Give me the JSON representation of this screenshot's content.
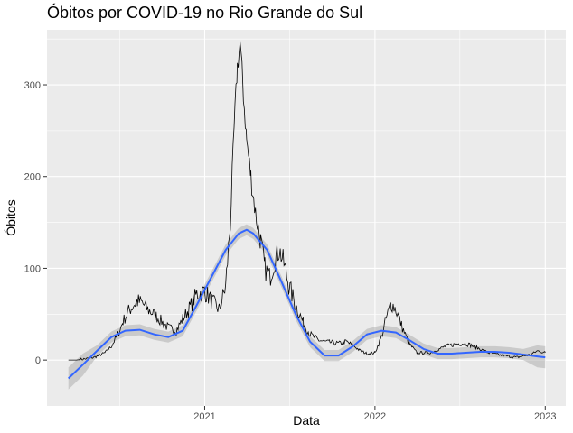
{
  "chart_data": {
    "type": "line",
    "title": "Óbitos por COVID-19 no Rio Grande do Sul",
    "xlabel": "Data",
    "ylabel": "Óbitos",
    "x_ticks": [
      "2021",
      "2022",
      "2023"
    ],
    "x_tick_dates": [
      "2021-01-01",
      "2022-01-01",
      "2023-01-01"
    ],
    "y_ticks": [
      0,
      100,
      200,
      300
    ],
    "xlim": [
      "2020-01-29",
      "2023-02-14"
    ],
    "ylim": [
      -50,
      360
    ],
    "grid": true,
    "panel_background": "#EBEBEB",
    "series": [
      {
        "kind": "raw",
        "color": "#000000",
        "points": [
          [
            "2020-03-15",
            0
          ],
          [
            "2020-04-01",
            0
          ],
          [
            "2020-04-15",
            1
          ],
          [
            "2020-05-01",
            2
          ],
          [
            "2020-05-15",
            4
          ],
          [
            "2020-06-01",
            8
          ],
          [
            "2020-06-15",
            15
          ],
          [
            "2020-07-01",
            30
          ],
          [
            "2020-07-10",
            42
          ],
          [
            "2020-07-20",
            52
          ],
          [
            "2020-08-01",
            60
          ],
          [
            "2020-08-10",
            64
          ],
          [
            "2020-08-20",
            62
          ],
          [
            "2020-09-01",
            55
          ],
          [
            "2020-09-15",
            50
          ],
          [
            "2020-10-01",
            42
          ],
          [
            "2020-10-15",
            35
          ],
          [
            "2020-11-01",
            32
          ],
          [
            "2020-11-15",
            45
          ],
          [
            "2020-12-01",
            58
          ],
          [
            "2020-12-15",
            72
          ],
          [
            "2021-01-01",
            75
          ],
          [
            "2021-01-15",
            65
          ],
          [
            "2021-02-01",
            55
          ],
          [
            "2021-02-15",
            80
          ],
          [
            "2021-02-25",
            150
          ],
          [
            "2021-03-05",
            250
          ],
          [
            "2021-03-12",
            320
          ],
          [
            "2021-03-18",
            345
          ],
          [
            "2021-03-25",
            290
          ],
          [
            "2021-04-01",
            240
          ],
          [
            "2021-04-10",
            200
          ],
          [
            "2021-04-20",
            160
          ],
          [
            "2021-05-01",
            130
          ],
          [
            "2021-05-10",
            100
          ],
          [
            "2021-05-20",
            90
          ],
          [
            "2021-06-01",
            110
          ],
          [
            "2021-06-10",
            120
          ],
          [
            "2021-06-20",
            105
          ],
          [
            "2021-07-01",
            80
          ],
          [
            "2021-07-15",
            60
          ],
          [
            "2021-08-01",
            40
          ],
          [
            "2021-08-15",
            28
          ],
          [
            "2021-09-01",
            22
          ],
          [
            "2021-09-15",
            20
          ],
          [
            "2021-10-01",
            19
          ],
          [
            "2021-10-15",
            18
          ],
          [
            "2021-11-01",
            20
          ],
          [
            "2021-11-15",
            16
          ],
          [
            "2021-12-01",
            10
          ],
          [
            "2021-12-15",
            7
          ],
          [
            "2022-01-01",
            8
          ],
          [
            "2022-01-15",
            25
          ],
          [
            "2022-01-25",
            45
          ],
          [
            "2022-02-05",
            62
          ],
          [
            "2022-02-15",
            55
          ],
          [
            "2022-03-01",
            35
          ],
          [
            "2022-03-15",
            18
          ],
          [
            "2022-04-01",
            8
          ],
          [
            "2022-05-01",
            8
          ],
          [
            "2022-06-01",
            15
          ],
          [
            "2022-07-01",
            18
          ],
          [
            "2022-07-15",
            18
          ],
          [
            "2022-08-01",
            15
          ],
          [
            "2022-09-01",
            8
          ],
          [
            "2022-10-01",
            5
          ],
          [
            "2022-11-01",
            3
          ],
          [
            "2022-12-01",
            6
          ],
          [
            "2022-12-15",
            10
          ],
          [
            "2023-01-01",
            8
          ]
        ]
      },
      {
        "kind": "smooth",
        "color": "#3366FF",
        "ribbon_color": "#999999",
        "points": [
          [
            "2020-03-15",
            -20
          ],
          [
            "2020-04-15",
            -5
          ],
          [
            "2020-05-15",
            10
          ],
          [
            "2020-06-15",
            25
          ],
          [
            "2020-07-15",
            32
          ],
          [
            "2020-08-15",
            33
          ],
          [
            "2020-09-15",
            28
          ],
          [
            "2020-10-15",
            25
          ],
          [
            "2020-11-15",
            32
          ],
          [
            "2020-12-15",
            60
          ],
          [
            "2021-01-15",
            90
          ],
          [
            "2021-02-15",
            120
          ],
          [
            "2021-03-15",
            138
          ],
          [
            "2021-04-01",
            142
          ],
          [
            "2021-04-15",
            138
          ],
          [
            "2021-05-15",
            120
          ],
          [
            "2021-06-15",
            85
          ],
          [
            "2021-07-15",
            50
          ],
          [
            "2021-08-15",
            20
          ],
          [
            "2021-09-15",
            5
          ],
          [
            "2021-10-15",
            5
          ],
          [
            "2021-11-15",
            15
          ],
          [
            "2021-12-15",
            28
          ],
          [
            "2022-01-15",
            32
          ],
          [
            "2022-02-15",
            30
          ],
          [
            "2022-03-15",
            22
          ],
          [
            "2022-04-15",
            12
          ],
          [
            "2022-05-15",
            7
          ],
          [
            "2022-06-15",
            7
          ],
          [
            "2022-07-15",
            8
          ],
          [
            "2022-08-15",
            9
          ],
          [
            "2022-09-15",
            9
          ],
          [
            "2022-10-15",
            8
          ],
          [
            "2022-11-15",
            6
          ],
          [
            "2022-12-15",
            4
          ],
          [
            "2023-01-01",
            3
          ]
        ]
      }
    ]
  }
}
